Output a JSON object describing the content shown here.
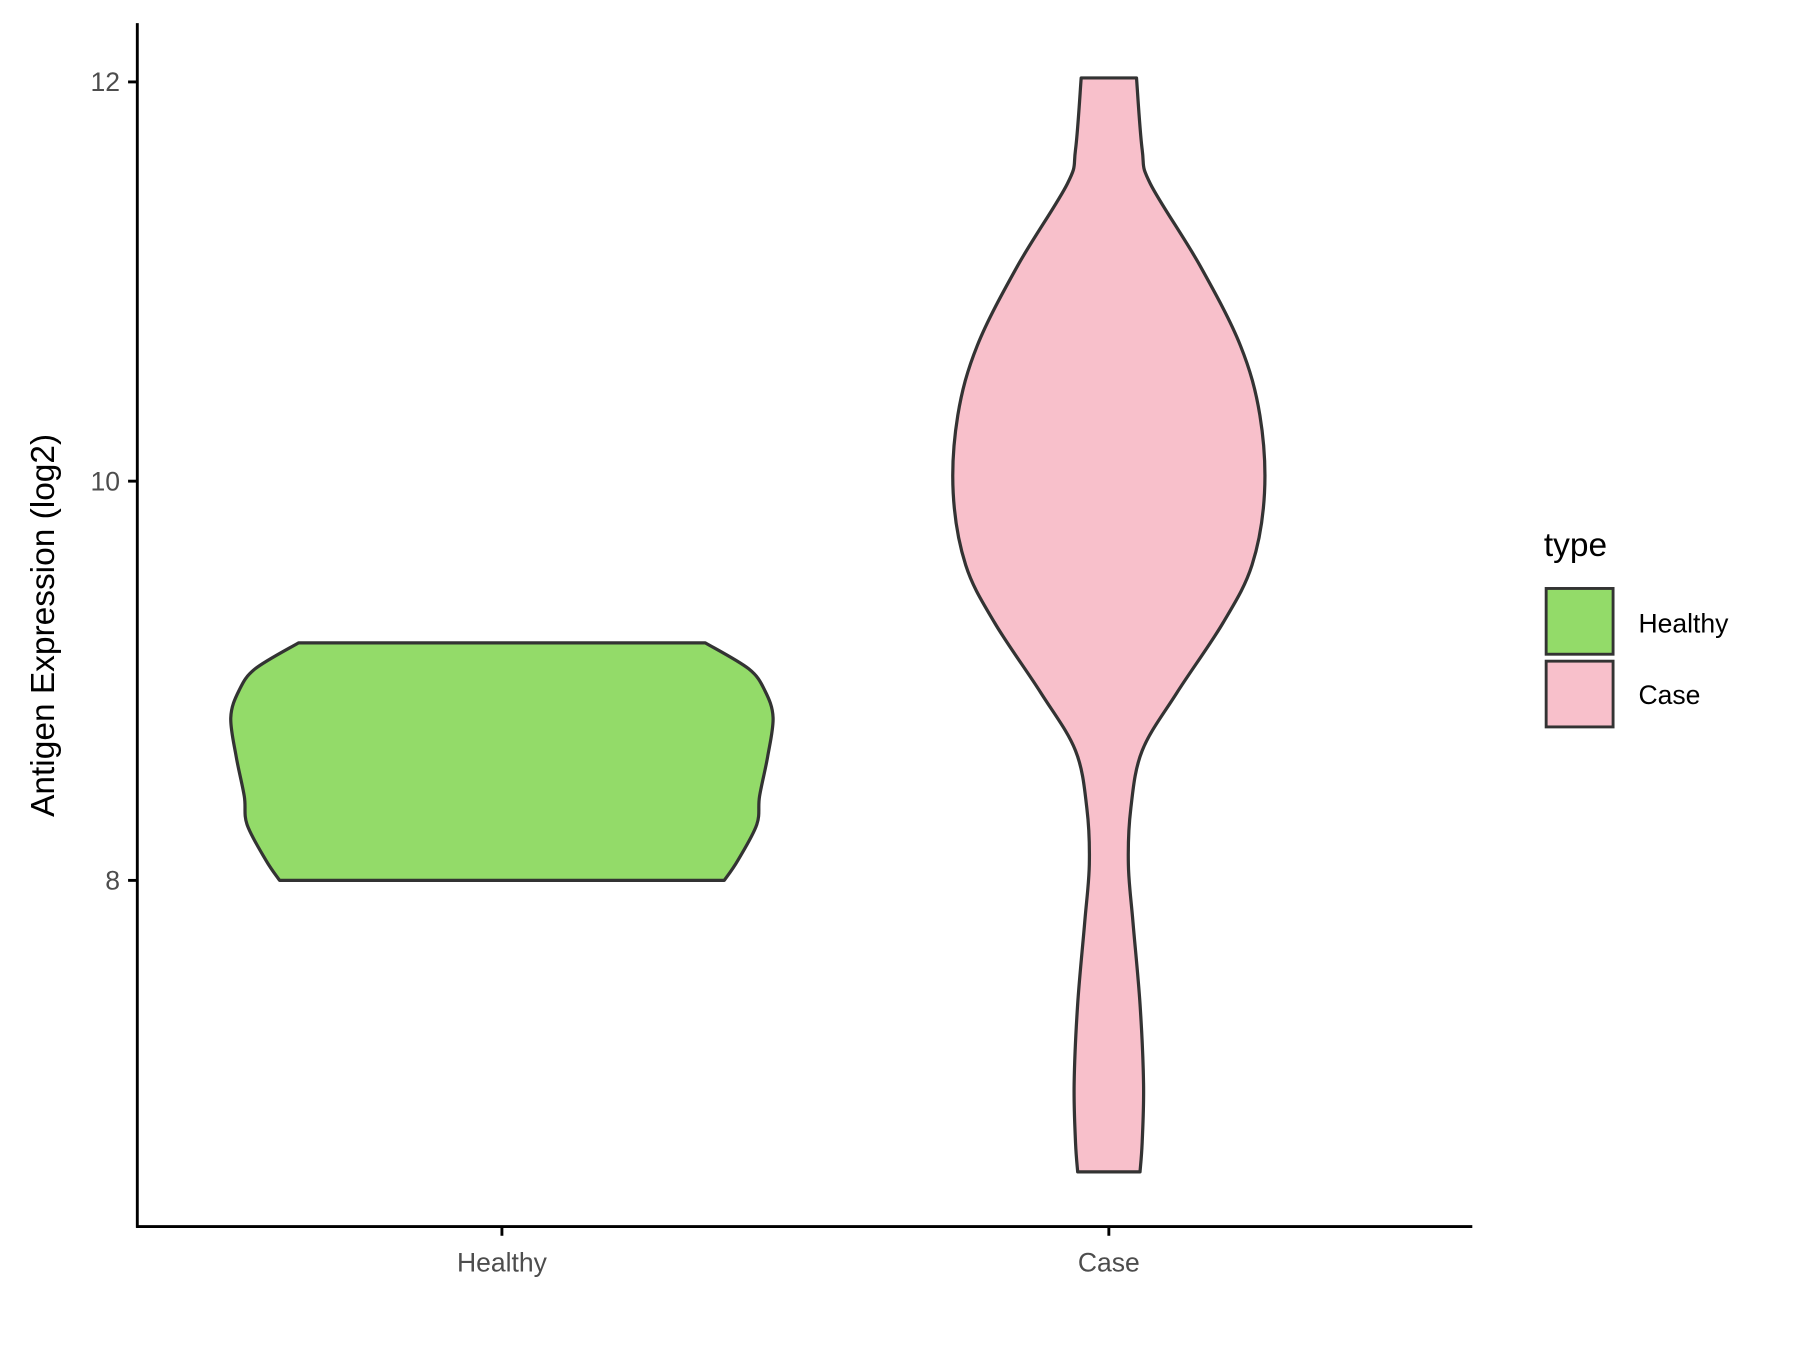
{
  "chart_data": {
    "type": "violin",
    "title": "",
    "xlabel": "",
    "ylabel": "Antigen Expression (log2)",
    "ylim": [
      6.27,
      12.29
    ],
    "yticks": [
      8,
      10,
      12
    ],
    "grid": false,
    "categories": [
      "Healthy",
      "Case"
    ],
    "legend": {
      "title": "type",
      "placement": "right",
      "entries": [
        "Healthy",
        "Case"
      ]
    },
    "colors": {
      "Healthy": "#93DB69",
      "Case": "#F8C0CB",
      "outline": "#333333"
    },
    "series": [
      {
        "name": "Healthy",
        "min": 8.0,
        "max": 9.19,
        "profile_y": [
          8.0,
          8.1,
          8.28,
          8.42,
          8.62,
          8.815,
          8.95,
          9.06,
          9.19
        ],
        "profile_density": [
          0.82,
          0.87,
          0.94,
          0.95,
          0.98,
          1.0,
          0.97,
          0.91,
          0.75
        ]
      },
      {
        "name": "Case",
        "min": 6.54,
        "max": 12.02,
        "profile_y": [
          6.54,
          6.69,
          6.98,
          7.38,
          7.79,
          8.08,
          8.36,
          8.65,
          8.94,
          9.29,
          9.58,
          9.94,
          10.33,
          10.68,
          11.08,
          11.49,
          11.66,
          12.02
        ],
        "profile_density": [
          0.115,
          0.123,
          0.128,
          0.115,
          0.089,
          0.072,
          0.081,
          0.123,
          0.251,
          0.421,
          0.528,
          0.574,
          0.557,
          0.485,
          0.336,
          0.153,
          0.123,
          0.102
        ]
      }
    ]
  }
}
